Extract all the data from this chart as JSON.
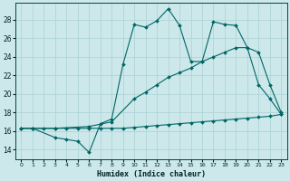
{
  "xlabel": "Humidex (Indice chaleur)",
  "xlim": [
    -0.5,
    23.5
  ],
  "ylim": [
    13.0,
    29.8
  ],
  "xticks": [
    0,
    1,
    2,
    3,
    4,
    5,
    6,
    7,
    8,
    9,
    10,
    11,
    12,
    13,
    14,
    15,
    16,
    17,
    18,
    19,
    20,
    21,
    22,
    23
  ],
  "yticks": [
    14,
    16,
    18,
    20,
    22,
    24,
    26,
    28
  ],
  "bg_color": "#cce8ea",
  "line_color": "#006666",
  "grid_color": "#aad0d4",
  "line1_x": [
    0,
    1,
    3,
    4,
    5,
    6,
    7,
    8,
    9,
    10,
    11,
    12,
    13,
    14,
    15,
    16,
    17,
    18,
    19,
    20,
    21,
    22,
    23
  ],
  "line1_y": [
    16.3,
    16.3,
    15.3,
    15.1,
    14.9,
    13.7,
    16.8,
    17.3,
    23.2,
    27.5,
    27.2,
    27.9,
    29.2,
    27.4,
    23.5,
    23.5,
    27.8,
    27.5,
    27.4,
    25.0,
    21.0,
    19.5,
    17.8
  ],
  "line2_x": [
    0,
    1,
    2,
    3,
    4,
    5,
    6,
    7,
    8,
    9,
    10,
    11,
    12,
    13,
    14,
    15,
    16,
    17,
    18,
    19,
    20,
    21,
    22,
    23
  ],
  "line2_y": [
    16.3,
    16.3,
    16.3,
    16.3,
    16.3,
    16.3,
    16.3,
    16.3,
    16.3,
    16.3,
    16.4,
    16.5,
    16.6,
    16.7,
    16.8,
    16.9,
    17.0,
    17.1,
    17.2,
    17.3,
    17.4,
    17.5,
    17.6,
    17.8
  ],
  "line3_x": [
    0,
    1,
    3,
    6,
    8,
    10,
    11,
    12,
    13,
    14,
    15,
    16,
    17,
    18,
    19,
    20,
    21,
    22,
    23
  ],
  "line3_y": [
    16.3,
    16.3,
    16.3,
    16.5,
    17.0,
    19.5,
    20.2,
    21.0,
    21.8,
    22.3,
    22.8,
    23.5,
    24.0,
    24.5,
    25.0,
    25.0,
    24.5,
    21.0,
    18.0
  ]
}
